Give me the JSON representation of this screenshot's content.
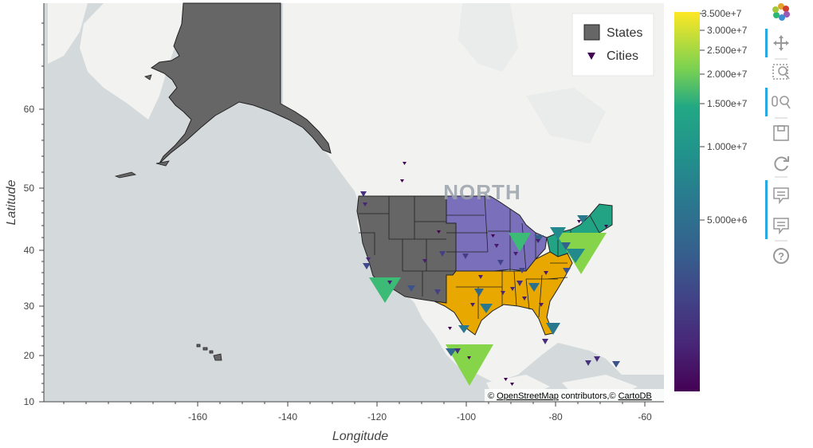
{
  "map": {
    "x_axis": {
      "title": "Longitude",
      "ticks": [
        "-160",
        "-140",
        "-120",
        "-100",
        "-80",
        "-60"
      ]
    },
    "y_axis": {
      "title": "Latitude",
      "ticks": [
        "10",
        "20",
        "30",
        "40",
        "50",
        "60"
      ]
    },
    "basemap_label": "NORTH",
    "attribution": {
      "prefix": "© ",
      "osm": "OpenStreetMap",
      "middle": " contributors,© ",
      "carto": "CartoDB"
    },
    "legend": {
      "items": [
        {
          "label": "States",
          "color": "#666666"
        },
        {
          "label": "Cities",
          "color": "#440154"
        }
      ]
    },
    "colorbar": {
      "ticks": [
        "3.500e+7",
        "3.000e+7",
        "2.500e+7",
        "2.000e+7",
        "1.500e+7",
        "1.000e+7",
        "5.000e+6"
      ]
    },
    "region_colors": {
      "west": "#666666",
      "midwest": "#7a6fba",
      "south": "#e8a800",
      "northeast": "#21a384"
    }
  },
  "toolbar": {
    "logo_icon": "bokeh-logo-icon",
    "tools": [
      "pan-icon",
      "box-zoom-icon",
      "wheel-zoom-icon",
      "save-icon",
      "reset-icon",
      "hover-icon",
      "hover-icon",
      "help-icon"
    ]
  }
}
